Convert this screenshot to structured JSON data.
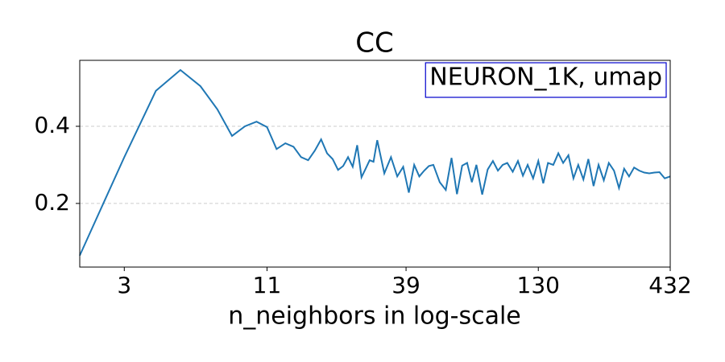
{
  "chart_data": {
    "type": "line",
    "title": "CC",
    "x_label": "n_neighbors in log-scale",
    "annotation": "NEURON_1K, umap",
    "annotation_border_color": "#0000cc",
    "x_scale": "log",
    "grid": "y",
    "color": "#1f77b4",
    "xlim": [
      2,
      432
    ],
    "xticks": [
      3,
      11,
      39,
      130,
      432
    ],
    "ylim": [
      0.035,
      0.571
    ],
    "yticks": [
      0.2,
      0.4
    ],
    "x": [
      2,
      3,
      4,
      5,
      6,
      7,
      8,
      9,
      10,
      11,
      12,
      13,
      14,
      15,
      16,
      17,
      18,
      19,
      20,
      21,
      22,
      23,
      24,
      25,
      26,
      27,
      28,
      29,
      30,
      32,
      34,
      36,
      38,
      40,
      42,
      44,
      46,
      48,
      50,
      53,
      56,
      59,
      62,
      65,
      68,
      71,
      74,
      78,
      82,
      86,
      90,
      94,
      98,
      103,
      108,
      113,
      118,
      124,
      130,
      136,
      142,
      149,
      156,
      163,
      171,
      179,
      187,
      196,
      205,
      215,
      225,
      236,
      247,
      259,
      271,
      284,
      297,
      311,
      326,
      341,
      357,
      374,
      392,
      411,
      432
    ],
    "values": [
      0.065,
      0.32,
      0.492,
      0.546,
      0.504,
      0.444,
      0.375,
      0.4,
      0.412,
      0.398,
      0.341,
      0.356,
      0.347,
      0.32,
      0.312,
      0.337,
      0.366,
      0.33,
      0.315,
      0.287,
      0.297,
      0.32,
      0.295,
      0.351,
      0.268,
      0.29,
      0.312,
      0.308,
      0.364,
      0.278,
      0.32,
      0.27,
      0.295,
      0.228,
      0.3,
      0.27,
      0.285,
      0.297,
      0.3,
      0.255,
      0.235,
      0.318,
      0.224,
      0.298,
      0.305,
      0.255,
      0.3,
      0.223,
      0.288,
      0.31,
      0.285,
      0.3,
      0.305,
      0.282,
      0.31,
      0.272,
      0.3,
      0.265,
      0.31,
      0.252,
      0.305,
      0.3,
      0.33,
      0.305,
      0.325,
      0.265,
      0.3,
      0.262,
      0.315,
      0.245,
      0.3,
      0.26,
      0.305,
      0.285,
      0.24,
      0.29,
      0.27,
      0.293,
      0.285,
      0.28,
      0.278,
      0.28,
      0.281,
      0.265,
      0.27
    ]
  }
}
